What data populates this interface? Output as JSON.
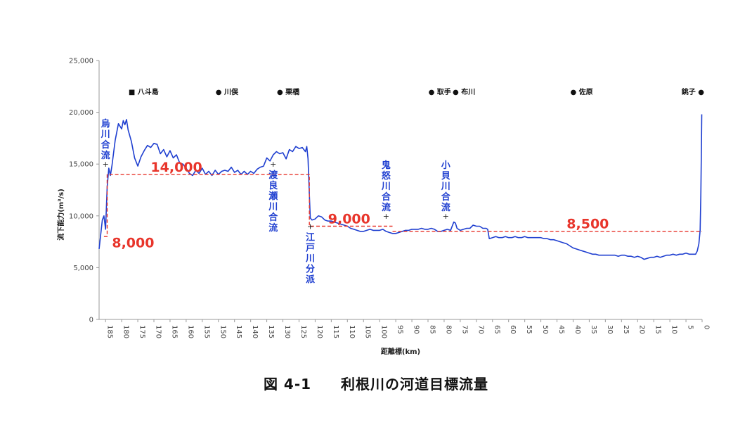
{
  "caption": {
    "figure_no": "図 4-1",
    "title": "利根川の河道目標流量"
  },
  "chart_data": {
    "type": "line",
    "xlabel": "距離標(km)",
    "ylabel": "流下能力(m³/s)",
    "xlim": [
      187,
      0
    ],
    "ylim": [
      0,
      25000
    ],
    "x_reversed": true,
    "grid": false,
    "yticks": [
      0,
      5000,
      10000,
      15000,
      20000,
      25000
    ],
    "ytick_labels": [
      "0",
      "5,000",
      "10,000",
      "15,000",
      "20,000",
      "25,000"
    ],
    "xticks": [
      185,
      180,
      175,
      170,
      165,
      160,
      155,
      150,
      145,
      140,
      135,
      130,
      125,
      120,
      115,
      110,
      105,
      100,
      95,
      90,
      85,
      80,
      75,
      70,
      65,
      60,
      55,
      50,
      45,
      40,
      35,
      30,
      25,
      20,
      15,
      10,
      5,
      0
    ],
    "xtick_labels": [
      "185",
      "180",
      "175",
      "170",
      "165",
      "160",
      "155",
      "150",
      "145",
      "140",
      "135",
      "130",
      "125",
      "120",
      "115",
      "110",
      "105",
      "100",
      "95",
      "90",
      "85",
      "80",
      "75",
      "70",
      "65",
      "60",
      "55",
      "50",
      "45",
      "40",
      "35",
      "30",
      "25",
      "20",
      "15",
      "10",
      "5",
      "0"
    ],
    "colors": {
      "capacity_line": "#1f3fd0",
      "target_line": "#e8352b",
      "confluence_text": "#1f3fd0",
      "target_text": "#e8352b"
    },
    "series": [
      {
        "style": "solid",
        "color": "#1f3fd0",
        "points": [
          [
            187,
            6800
          ],
          [
            186.5,
            8200
          ],
          [
            186,
            9600
          ],
          [
            185.5,
            10000
          ],
          [
            185,
            8700
          ],
          [
            184.5,
            12800
          ],
          [
            184,
            14600
          ],
          [
            183.5,
            13900
          ],
          [
            183,
            14900
          ],
          [
            182,
            17300
          ],
          [
            181,
            18900
          ],
          [
            180,
            18400
          ],
          [
            179.5,
            19200
          ],
          [
            179,
            18800
          ],
          [
            178.5,
            19300
          ],
          [
            178,
            18300
          ],
          [
            177,
            17200
          ],
          [
            176,
            15600
          ],
          [
            175,
            14800
          ],
          [
            174,
            15700
          ],
          [
            173,
            16300
          ],
          [
            172,
            16800
          ],
          [
            171,
            16600
          ],
          [
            170,
            17000
          ],
          [
            169,
            16900
          ],
          [
            168,
            16000
          ],
          [
            167,
            16400
          ],
          [
            166,
            15700
          ],
          [
            165,
            16300
          ],
          [
            164,
            15600
          ],
          [
            163,
            15900
          ],
          [
            162,
            15100
          ],
          [
            161,
            15000
          ],
          [
            160,
            14600
          ],
          [
            159,
            14100
          ],
          [
            158,
            13900
          ],
          [
            157,
            14400
          ],
          [
            156,
            14100
          ],
          [
            155,
            14600
          ],
          [
            154,
            14000
          ],
          [
            153,
            14300
          ],
          [
            152,
            13900
          ],
          [
            151,
            14400
          ],
          [
            150,
            14000
          ],
          [
            149,
            14300
          ],
          [
            148,
            14400
          ],
          [
            147,
            14300
          ],
          [
            146,
            14700
          ],
          [
            145,
            14200
          ],
          [
            144,
            14400
          ],
          [
            143,
            14000
          ],
          [
            142,
            14300
          ],
          [
            141,
            14000
          ],
          [
            140,
            14300
          ],
          [
            139,
            14100
          ],
          [
            138,
            14500
          ],
          [
            137,
            14700
          ],
          [
            136,
            14800
          ],
          [
            135,
            15600
          ],
          [
            134,
            15300
          ],
          [
            133,
            15900
          ],
          [
            132,
            16200
          ],
          [
            131,
            16000
          ],
          [
            130,
            16100
          ],
          [
            129,
            15500
          ],
          [
            128,
            16400
          ],
          [
            127,
            16200
          ],
          [
            126,
            16700
          ],
          [
            125,
            16500
          ],
          [
            124,
            16600
          ],
          [
            123,
            16200
          ],
          [
            122.6,
            16700
          ],
          [
            122.2,
            15500
          ],
          [
            121.8,
            12000
          ],
          [
            121.5,
            9800
          ],
          [
            121,
            9600
          ],
          [
            120,
            9700
          ],
          [
            119,
            10000
          ],
          [
            118,
            9900
          ],
          [
            117,
            9600
          ],
          [
            116,
            9500
          ],
          [
            115,
            9500
          ],
          [
            114,
            9400
          ],
          [
            113,
            9300
          ],
          [
            112,
            9200
          ],
          [
            111,
            9100
          ],
          [
            110,
            9000
          ],
          [
            109,
            8800
          ],
          [
            108,
            8700
          ],
          [
            107,
            8600
          ],
          [
            106,
            8500
          ],
          [
            105,
            8500
          ],
          [
            104,
            8600
          ],
          [
            103,
            8700
          ],
          [
            102,
            8600
          ],
          [
            101,
            8600
          ],
          [
            100,
            8600
          ],
          [
            99,
            8700
          ],
          [
            98,
            8500
          ],
          [
            97,
            8400
          ],
          [
            96,
            8300
          ],
          [
            95,
            8300
          ],
          [
            94,
            8400
          ],
          [
            93,
            8500
          ],
          [
            92,
            8600
          ],
          [
            91,
            8600
          ],
          [
            90,
            8700
          ],
          [
            89,
            8700
          ],
          [
            88,
            8700
          ],
          [
            87,
            8800
          ],
          [
            86,
            8700
          ],
          [
            85,
            8700
          ],
          [
            84,
            8800
          ],
          [
            83,
            8700
          ],
          [
            82,
            8500
          ],
          [
            81,
            8500
          ],
          [
            80,
            8600
          ],
          [
            79,
            8700
          ],
          [
            78,
            8600
          ],
          [
            77,
            9400
          ],
          [
            76.5,
            9300
          ],
          [
            76,
            8800
          ],
          [
            75,
            8600
          ],
          [
            74,
            8700
          ],
          [
            73,
            8800
          ],
          [
            72,
            8800
          ],
          [
            71,
            9100
          ],
          [
            70,
            9000
          ],
          [
            69,
            9000
          ],
          [
            68,
            8800
          ],
          [
            67,
            8800
          ],
          [
            66.5,
            8700
          ],
          [
            66,
            7800
          ],
          [
            65,
            7900
          ],
          [
            64,
            8000
          ],
          [
            63,
            7900
          ],
          [
            62,
            7900
          ],
          [
            61,
            8000
          ],
          [
            60,
            7900
          ],
          [
            59,
            7900
          ],
          [
            58,
            8000
          ],
          [
            57,
            7900
          ],
          [
            56,
            7900
          ],
          [
            55,
            8000
          ],
          [
            54,
            7900
          ],
          [
            53,
            7900
          ],
          [
            52,
            7900
          ],
          [
            51,
            7900
          ],
          [
            50,
            7900
          ],
          [
            49,
            7800
          ],
          [
            48,
            7800
          ],
          [
            47,
            7700
          ],
          [
            46,
            7700
          ],
          [
            45,
            7600
          ],
          [
            44,
            7500
          ],
          [
            43,
            7400
          ],
          [
            42,
            7300
          ],
          [
            41,
            7100
          ],
          [
            40,
            6900
          ],
          [
            39,
            6800
          ],
          [
            38,
            6700
          ],
          [
            37,
            6600
          ],
          [
            36,
            6500
          ],
          [
            35,
            6400
          ],
          [
            34,
            6300
          ],
          [
            33,
            6300
          ],
          [
            32,
            6200
          ],
          [
            31,
            6200
          ],
          [
            30,
            6200
          ],
          [
            29,
            6200
          ],
          [
            28,
            6200
          ],
          [
            27,
            6200
          ],
          [
            26,
            6100
          ],
          [
            25,
            6200
          ],
          [
            24,
            6200
          ],
          [
            23,
            6100
          ],
          [
            22,
            6100
          ],
          [
            21,
            6000
          ],
          [
            20,
            6100
          ],
          [
            19,
            6000
          ],
          [
            18,
            5800
          ],
          [
            17,
            5900
          ],
          [
            16,
            6000
          ],
          [
            15,
            6000
          ],
          [
            14,
            6100
          ],
          [
            13,
            6000
          ],
          [
            12,
            6100
          ],
          [
            11,
            6200
          ],
          [
            10,
            6200
          ],
          [
            9,
            6300
          ],
          [
            8,
            6200
          ],
          [
            7,
            6300
          ],
          [
            6,
            6300
          ],
          [
            5,
            6400
          ],
          [
            4,
            6300
          ],
          [
            3,
            6300
          ],
          [
            2,
            6300
          ],
          [
            1.5,
            6600
          ],
          [
            1,
            7300
          ],
          [
            0.6,
            8600
          ],
          [
            0.4,
            12000
          ],
          [
            0.2,
            17000
          ],
          [
            0.1,
            19800
          ]
        ]
      },
      {
        "style": "dashed",
        "color": "#e8352b",
        "points": [
          [
            185.5,
            8000
          ],
          [
            184.5,
            8000
          ],
          [
            184.5,
            14000
          ],
          [
            121.8,
            14000
          ],
          [
            121.8,
            9000
          ],
          [
            96,
            9000
          ]
        ]
      },
      {
        "style": "dashed",
        "color": "#e8352b",
        "points": [
          [
            96,
            8500
          ],
          [
            0,
            8500
          ]
        ]
      }
    ],
    "annotations": {
      "locations": [
        {
          "label": "■ 八斗島",
          "x": 177
        },
        {
          "label": "● 川俣",
          "x": 150
        },
        {
          "label": "● 栗橋",
          "x": 131
        },
        {
          "label": "● 取手",
          "x": 84
        },
        {
          "label": "● 布川",
          "x": 76.5
        },
        {
          "label": "● 佐原",
          "x": 40
        },
        {
          "label": "銚子 ●",
          "x": 0
        }
      ],
      "confluences": [
        {
          "label": "烏川合流",
          "x": 185,
          "y": 15000,
          "side": "above"
        },
        {
          "label": "渡良瀬川合流",
          "x": 133,
          "y": 15000,
          "side": "below"
        },
        {
          "label": "江戸川分派",
          "x": 121.5,
          "y": 9000,
          "side": "below"
        },
        {
          "label": "鬼怒川合流",
          "x": 98,
          "y": 10000,
          "side": "above"
        },
        {
          "label": "小貝川合流",
          "x": 79.5,
          "y": 10000,
          "side": "above"
        }
      ],
      "targets": [
        {
          "label": "8,000",
          "x": 183,
          "y": 7900
        },
        {
          "label": "14,000",
          "x": 171,
          "y": 14200
        },
        {
          "label": "9,000",
          "x": 116,
          "y": 9200
        },
        {
          "label": "8,500",
          "x": 42,
          "y": 8600
        }
      ]
    }
  }
}
